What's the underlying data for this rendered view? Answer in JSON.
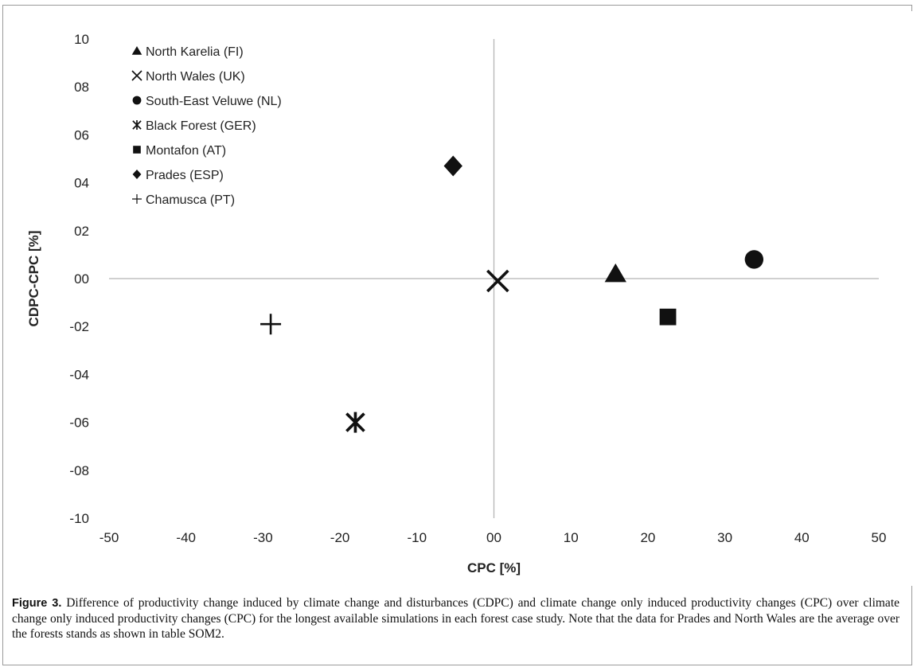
{
  "chart_data": {
    "type": "scatter",
    "xlabel": "CPC [%]",
    "ylabel": "CDPC-CPC [%]",
    "xlim": [
      -50,
      50
    ],
    "ylim": [
      -10,
      10
    ],
    "x_ticks": [
      -50,
      -40,
      -30,
      -20,
      -10,
      0,
      10,
      20,
      30,
      40,
      50
    ],
    "x_tick_labels": [
      "-50",
      "-40",
      "-30",
      "-20",
      "-10",
      "00",
      "10",
      "20",
      "30",
      "40",
      "50"
    ],
    "y_ticks": [
      10,
      8,
      6,
      4,
      2,
      0,
      -2,
      -4,
      -6,
      -8,
      -10
    ],
    "y_tick_labels": [
      "10",
      "08",
      "06",
      "04",
      "02",
      "00",
      "-02",
      "-04",
      "-06",
      "-08",
      "-10"
    ],
    "grid": false,
    "legend_position": "top-left",
    "series": [
      {
        "name": "North Karelia (FI)",
        "marker": "triangle",
        "x": 15.8,
        "y": 0.2
      },
      {
        "name": "North Wales (UK)",
        "marker": "x",
        "x": 0.5,
        "y": -0.1
      },
      {
        "name": "South-East Veluwe (NL)",
        "marker": "circle",
        "x": 33.8,
        "y": 0.8
      },
      {
        "name": "Black Forest (GER)",
        "marker": "asterisk",
        "x": -18.0,
        "y": -6.0
      },
      {
        "name": "Montafon (AT)",
        "marker": "square",
        "x": 22.6,
        "y": -1.6
      },
      {
        "name": "Prades (ESP)",
        "marker": "diamond",
        "x": -5.3,
        "y": 4.7
      },
      {
        "name": "Chamusca (PT)",
        "marker": "plus",
        "x": -29.0,
        "y": -1.9
      }
    ],
    "colors": {
      "marker": "#111111",
      "axis_line": "#b5b5b5"
    }
  },
  "caption": {
    "label": "Figure 3.",
    "text": "Difference of productivity change induced by climate change and disturbances (CDPC) and climate change only induced productivity changes (CPC) over climate change only induced productivity changes (CPC) for the longest available simulations in each forest case study. Note that the data for Prades and North Wales are the average over the forests stands as shown in table SOM2."
  }
}
